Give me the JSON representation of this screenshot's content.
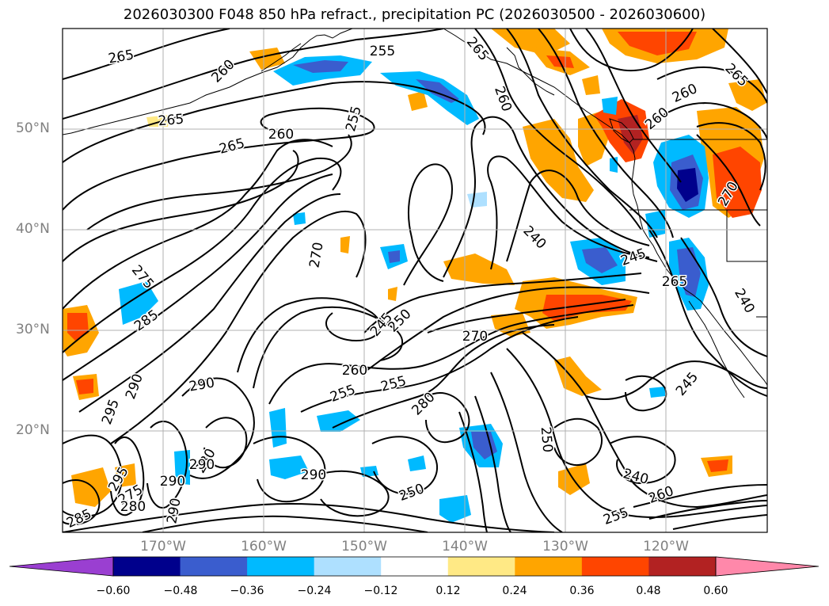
{
  "title": "2026030300 F048 850 hPa refract., precipitation PC (2026030500 - 2026030600)",
  "lat_labels": [
    "50°N",
    "40°N",
    "30°N",
    "20°N"
  ],
  "lon_labels": [
    "170°W",
    "160°W",
    "150°W",
    "140°W",
    "130°W",
    "120°W"
  ],
  "contour_labels": [
    "265",
    "260",
    "265",
    "255",
    "260",
    "255",
    "265",
    "265",
    "260",
    "265",
    "260",
    "260",
    "240",
    "245",
    "265",
    "275",
    "285",
    "290",
    "295",
    "290",
    "280",
    "295",
    "290",
    "275",
    "280",
    "285",
    "290",
    "270",
    "245",
    "250",
    "270",
    "260",
    "255",
    "255",
    "280",
    "290",
    "290",
    "250",
    "240",
    "255",
    "260",
    "245",
    "250",
    "240",
    "270"
  ],
  "colorbar": {
    "ticks": [
      "−0.60",
      "−0.48",
      "−0.36",
      "−0.24",
      "−0.12",
      "0.12",
      "0.24",
      "0.36",
      "0.48",
      "0.60"
    ],
    "colors": [
      "#9a3fd1",
      "#00008c",
      "#3a5dce",
      "#00baff",
      "#aee0ff",
      "#ffffff",
      "#ffe985",
      "#ffa500",
      "#ff4500",
      "#b22222",
      "#ff88aa"
    ]
  },
  "chart_data": {
    "type": "heatmap",
    "title": "2026030300 F048 850 hPa refract., precipitation PC (2026030500 - 2026030600)",
    "lat_ticks": [
      50,
      40,
      30,
      20
    ],
    "lon_ticks": [
      -170,
      -160,
      -150,
      -140,
      -130,
      -120
    ],
    "color_levels": [
      -0.6,
      -0.48,
      -0.36,
      -0.24,
      -0.12,
      0.12,
      0.24,
      0.36,
      0.48,
      0.6
    ],
    "contour_levels": [
      240,
      245,
      250,
      255,
      260,
      265,
      270,
      275,
      280,
      285,
      290,
      295,
      300
    ]
  }
}
